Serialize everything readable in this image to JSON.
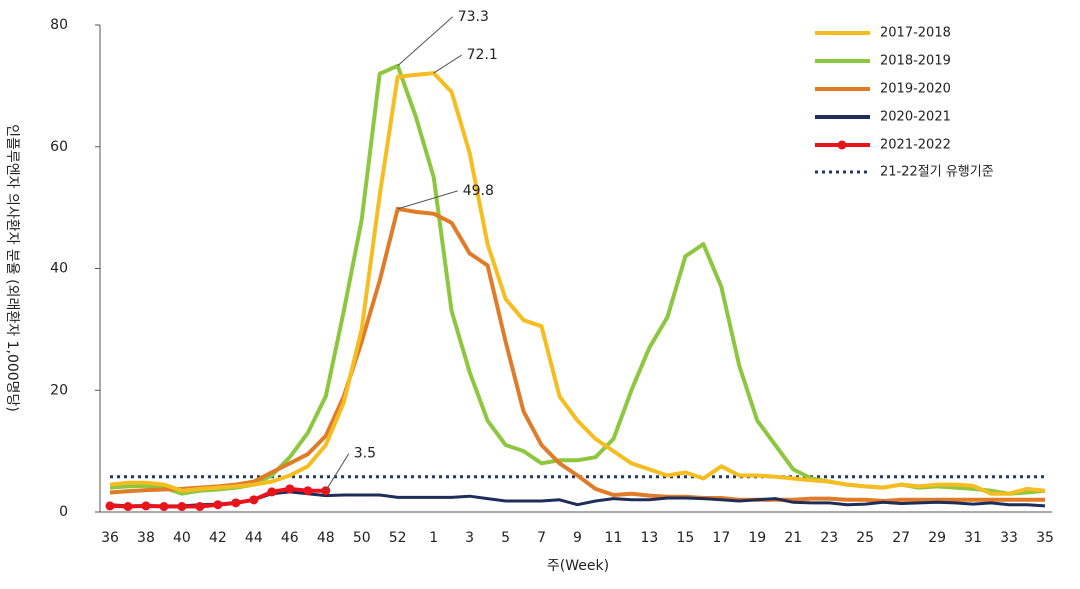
{
  "chart_data": {
    "type": "line",
    "y_label": "인플루엔자 의사환자 분율 (외래환자 1,000명당)",
    "x_label": "주(Week)",
    "categories": [
      "36",
      null,
      "38",
      null,
      "40",
      null,
      "42",
      null,
      "44",
      null,
      "46",
      null,
      "48",
      null,
      "50",
      null,
      "52",
      null,
      "1",
      null,
      "3",
      null,
      "5",
      null,
      "7",
      null,
      "9",
      null,
      "11",
      null,
      "13",
      null,
      "15",
      null,
      "17",
      null,
      "19",
      null,
      "21",
      null,
      "23",
      null,
      "25",
      null,
      "27",
      null,
      "29",
      null,
      "31",
      null,
      "33",
      null,
      "35"
    ],
    "ylim": [
      0,
      80
    ],
    "yticks": [
      0,
      20,
      40,
      60,
      80
    ],
    "legend": "top-right",
    "series": [
      {
        "name": "2017-2018",
        "color": "#f5bd1f",
        "values": [
          4.5,
          4.8,
          4.8,
          4.5,
          3.5,
          3.8,
          4,
          4.2,
          4.5,
          5,
          6,
          7.5,
          11,
          18,
          30,
          52,
          71.5,
          71.8,
          72.1,
          69,
          59,
          44,
          35,
          31.5,
          30.5,
          19,
          15,
          12,
          10,
          8,
          7,
          6,
          6.5,
          5.5,
          7.5,
          6,
          6,
          5.8,
          5.5,
          5.2,
          5,
          4.5,
          4.2,
          4,
          4.5,
          4.2,
          4.5,
          4.5,
          4.3,
          3,
          3,
          3.8,
          3.5
        ]
      },
      {
        "name": "2018-2019",
        "color": "#8dc63f",
        "values": [
          4,
          4.2,
          4.3,
          4,
          3,
          3.5,
          3.7,
          4,
          4.5,
          6,
          9,
          13,
          19,
          33,
          48,
          72,
          73.3,
          65,
          55,
          33,
          23,
          15,
          11,
          10,
          8,
          8.5,
          8.5,
          9,
          12,
          20,
          27,
          32,
          42,
          44,
          37,
          24,
          15,
          11,
          7,
          5.5,
          5,
          4.5,
          4.2,
          4,
          4.5,
          4,
          4.2,
          4,
          3.8,
          3.5,
          3,
          3.2,
          3.5
        ]
      },
      {
        "name": "2019-2020",
        "color": "#e07b28",
        "values": [
          3.2,
          3.4,
          3.6,
          3.7,
          3.8,
          4,
          4.2,
          4.5,
          5,
          6.5,
          8,
          9.5,
          12.5,
          19,
          28,
          38,
          49.8,
          49.3,
          49,
          47.5,
          42.5,
          40.5,
          28,
          16.5,
          11,
          8,
          6,
          3.8,
          2.8,
          3,
          2.7,
          2.5,
          2.5,
          2.3,
          2.3,
          2,
          2,
          2,
          2,
          2.2,
          2.2,
          2,
          2,
          1.8,
          2,
          2,
          2,
          2,
          2,
          2,
          2,
          2,
          2
        ]
      },
      {
        "name": "2020-2021",
        "color": "#1f2d5a",
        "values": [
          1.2,
          1,
          1,
          1,
          1,
          1.2,
          1.3,
          1.5,
          2,
          3,
          3.3,
          3,
          2.7,
          2.8,
          2.8,
          2.8,
          2.4,
          2.4,
          2.4,
          2.4,
          2.6,
          2.2,
          1.8,
          1.8,
          1.8,
          2,
          1.2,
          1.8,
          2.2,
          2,
          2,
          2.3,
          2.3,
          2.2,
          2,
          1.8,
          2,
          2.2,
          1.6,
          1.5,
          1.5,
          1.2,
          1.3,
          1.6,
          1.4,
          1.5,
          1.6,
          1.5,
          1.3,
          1.5,
          1.2,
          1.2,
          1
        ]
      },
      {
        "name": "2021-2022",
        "color": "#e8141b",
        "markers": true,
        "values": [
          1,
          0.9,
          1,
          0.9,
          0.9,
          0.9,
          1.2,
          1.5,
          2,
          3.3,
          3.8,
          3.5,
          3.5,
          null,
          null,
          null,
          null,
          null,
          null,
          null,
          null,
          null,
          null,
          null,
          null,
          null,
          null,
          null,
          null,
          null,
          null,
          null,
          null,
          null,
          null,
          null,
          null,
          null,
          null,
          null,
          null,
          null,
          null,
          null,
          null,
          null,
          null,
          null,
          null,
          null,
          null,
          null,
          null
        ]
      }
    ],
    "threshold": {
      "name": "21-22절기 유행기준",
      "value": 5.8,
      "color": "#1f3864"
    },
    "annotations": [
      {
        "text": "73.3",
        "series": 1,
        "index": 16
      },
      {
        "text": "72.1",
        "series": 0,
        "index": 18
      },
      {
        "text": "49.8",
        "series": 2,
        "index": 16
      },
      {
        "text": "3.5",
        "series": 4,
        "index": 12
      }
    ]
  }
}
